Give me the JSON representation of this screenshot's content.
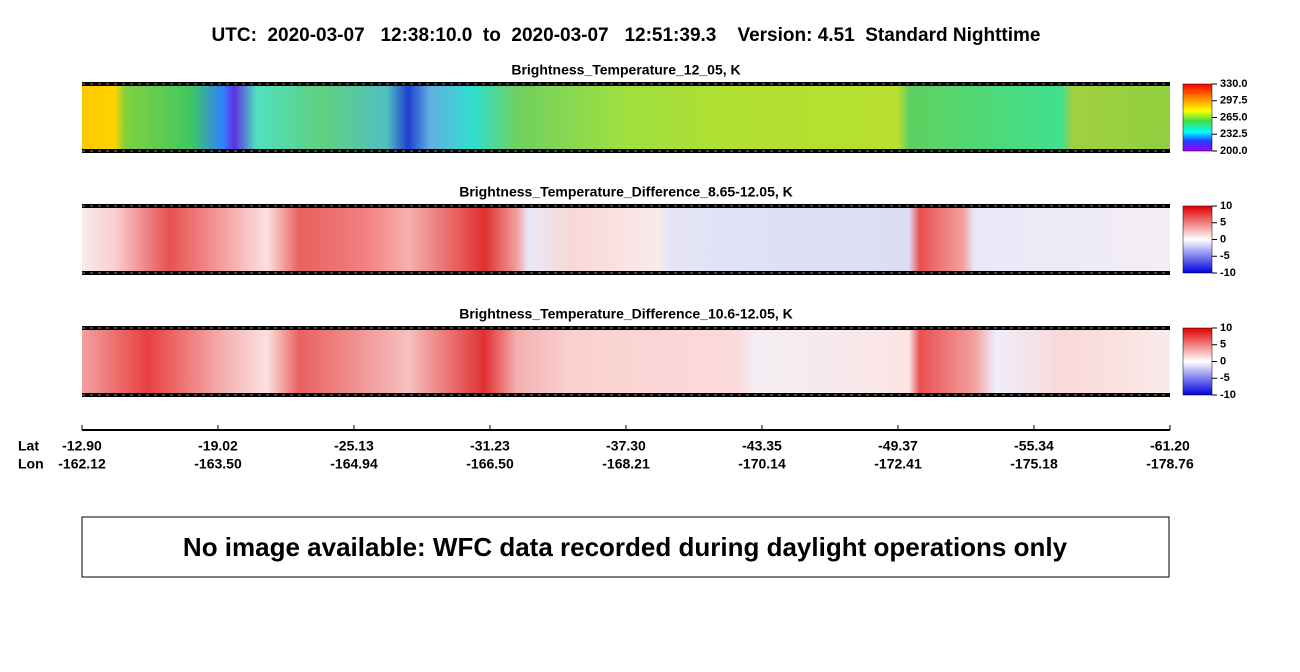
{
  "header": {
    "title": "UTC:  2020-03-07   12:38:10.0  to  2020-03-07   12:51:39.3    Version: 4.51  Standard Nighttime"
  },
  "panels": [
    {
      "title": "Brightness_Temperature_12_05, K",
      "colorbar": [
        "330.0",
        "297.5",
        "265.0",
        "232.5",
        "200.0"
      ]
    },
    {
      "title": "Brightness_Temperature_Difference_8.65-12.05, K",
      "colorbar": [
        "10",
        "5",
        "0",
        "-5",
        "-10"
      ]
    },
    {
      "title": "Brightness_Temperature_Difference_10.6-12.05, K",
      "colorbar": [
        "10",
        "5",
        "0",
        "-5",
        "-10"
      ]
    }
  ],
  "axis": {
    "lat_label": "Lat",
    "lon_label": "Lon",
    "lat": [
      "-12.90",
      "-19.02",
      "-25.13",
      "-31.23",
      "-37.30",
      "-43.35",
      "-49.37",
      "-55.34",
      "-61.20"
    ],
    "lon": [
      "-162.12",
      "-163.50",
      "-164.94",
      "-166.50",
      "-168.21",
      "-170.14",
      "-172.41",
      "-175.18",
      "-178.76"
    ]
  },
  "message": "No image available: WFC data recorded during daylight operations only"
}
